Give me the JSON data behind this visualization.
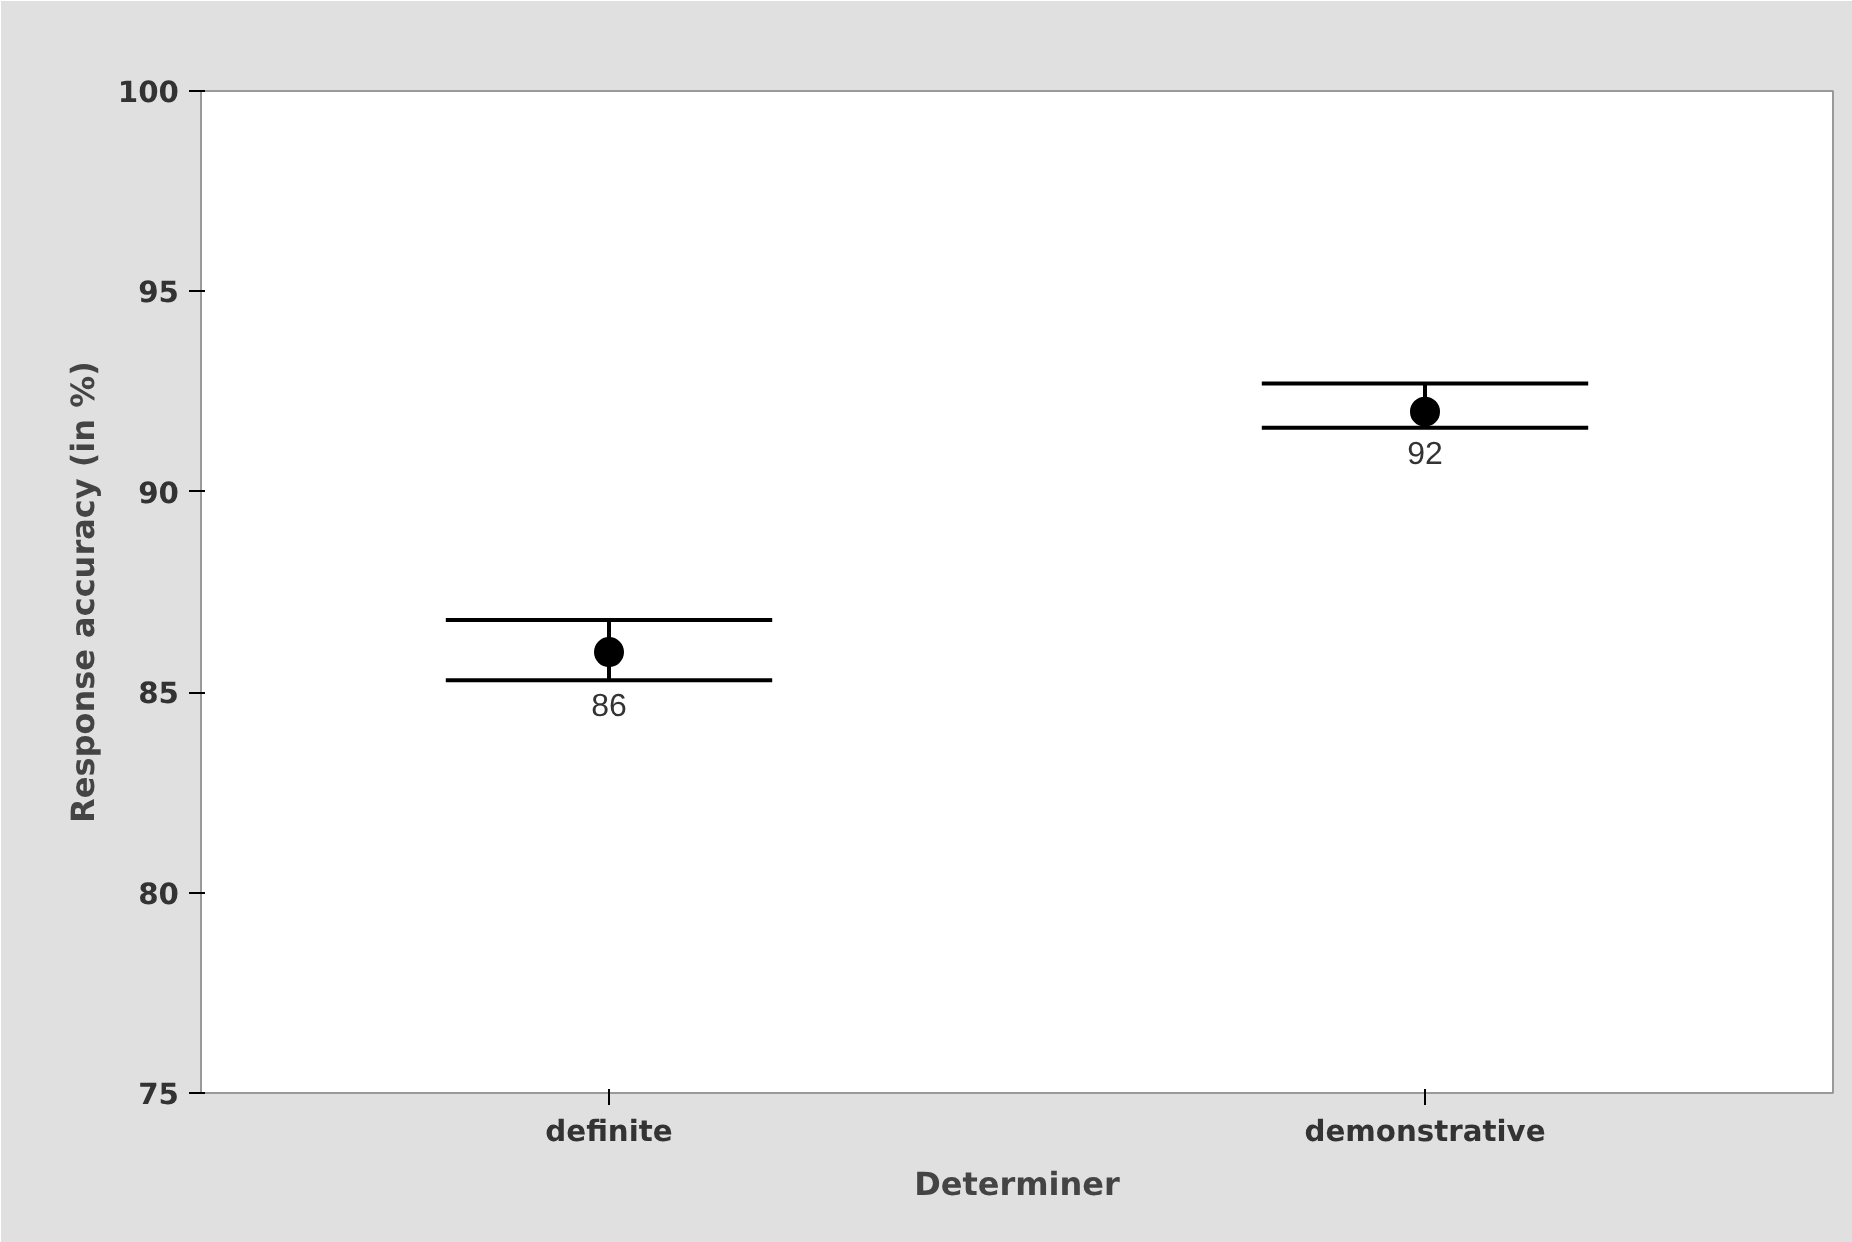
{
  "chart_data": {
    "type": "scatter",
    "xlabel": "Determiner",
    "ylabel": "Response accuracy (in %)",
    "categories": [
      "definite",
      "demonstrative"
    ],
    "values": [
      86,
      92
    ],
    "errors": [
      [
        85.3,
        86.8
      ],
      [
        91.6,
        92.7
      ]
    ],
    "color": "#000000",
    "marker": "circle",
    "data_labels": true,
    "ylim": [
      75,
      100
    ],
    "yticks": [
      75,
      80,
      85,
      90,
      95,
      100
    ],
    "grid": false
  }
}
